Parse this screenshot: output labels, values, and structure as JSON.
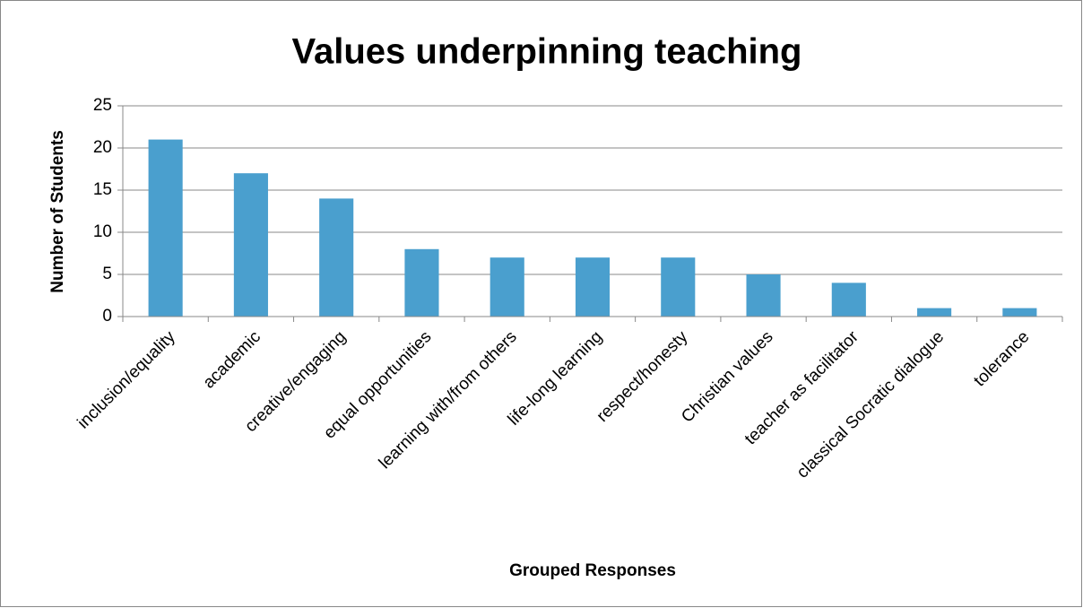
{
  "chart_data": {
    "type": "bar",
    "title": "Values underpinning teaching",
    "x_label": "Grouped Responses",
    "y_label": "Number of Students",
    "categories": [
      "inclusion/equality",
      "academic",
      "creative/engaging",
      "equal opportunities",
      "learning with/from others",
      "life-long learning",
      "respect/honesty",
      "Christian values",
      "teacher as facilitator",
      "classical Socratic dialogue",
      "tolerance"
    ],
    "values": [
      21,
      17,
      14,
      8,
      7,
      7,
      7,
      5,
      4,
      1,
      1
    ],
    "color": "#4a9fce",
    "ylim": [
      0,
      25
    ],
    "yticks": [
      0,
      5,
      10,
      15,
      20,
      25
    ],
    "grid": true
  }
}
